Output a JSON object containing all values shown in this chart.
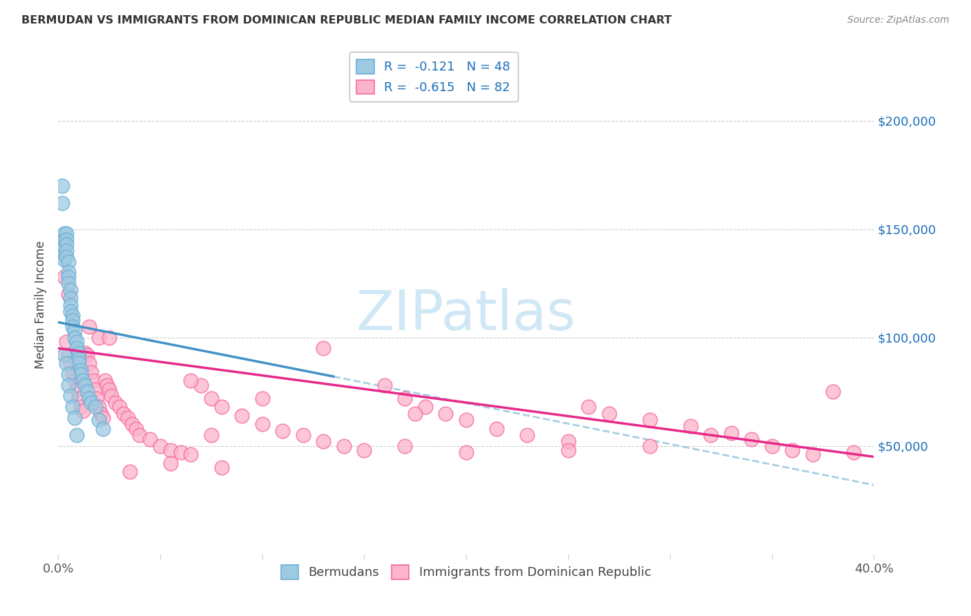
{
  "title": "BERMUDAN VS IMMIGRANTS FROM DOMINICAN REPUBLIC MEDIAN FAMILY INCOME CORRELATION CHART",
  "source": "Source: ZipAtlas.com",
  "ylabel": "Median Family Income",
  "xlim": [
    0.0,
    0.4
  ],
  "ylim": [
    0,
    230000
  ],
  "yticks": [
    0,
    50000,
    100000,
    150000,
    200000
  ],
  "ytick_labels_right": [
    "",
    "$50,000",
    "$100,000",
    "$150,000",
    "$200,000"
  ],
  "xticks": [
    0.0,
    0.05,
    0.1,
    0.15,
    0.2,
    0.25,
    0.3,
    0.35,
    0.4
  ],
  "xtick_labels": [
    "0.0%",
    "",
    "",
    "",
    "",
    "",
    "",
    "",
    "40.0%"
  ],
  "legend_labels": [
    "R =  -0.121   N = 48",
    "R =  -0.615   N = 82"
  ],
  "legend_bottom_labels": [
    "Bermudans",
    "Immigrants from Dominican Republic"
  ],
  "blue_scatter_color": "#9ecae1",
  "blue_edge_color": "#6baed6",
  "pink_scatter_color": "#fbb4c9",
  "pink_edge_color": "#f768a1",
  "blue_line_color": "#4292c6",
  "pink_line_color": "#e7298a",
  "dashed_line_color": "#9ecae1",
  "watermark_text": "ZIPatlas",
  "watermark_color": "#d0e8f5",
  "blue_line_x0": 0.0,
  "blue_line_x1": 0.135,
  "blue_line_y0": 107000,
  "blue_line_y1": 82000,
  "dash_line_x0": 0.135,
  "dash_line_x1": 0.4,
  "dash_line_y0": 82000,
  "dash_line_y1": 32000,
  "pink_line_x0": 0.0,
  "pink_line_x1": 0.4,
  "pink_line_y0": 95000,
  "pink_line_y1": 45000,
  "blue_x": [
    0.002,
    0.002,
    0.003,
    0.003,
    0.003,
    0.003,
    0.003,
    0.004,
    0.004,
    0.004,
    0.004,
    0.004,
    0.005,
    0.005,
    0.005,
    0.005,
    0.006,
    0.006,
    0.006,
    0.006,
    0.007,
    0.007,
    0.007,
    0.008,
    0.008,
    0.009,
    0.009,
    0.01,
    0.01,
    0.01,
    0.011,
    0.011,
    0.012,
    0.013,
    0.014,
    0.015,
    0.016,
    0.018,
    0.02,
    0.022,
    0.003,
    0.004,
    0.005,
    0.005,
    0.006,
    0.007,
    0.008,
    0.009
  ],
  "blue_y": [
    170000,
    162000,
    148000,
    145000,
    142000,
    138000,
    136000,
    148000,
    145000,
    143000,
    140000,
    137000,
    135000,
    130000,
    128000,
    125000,
    122000,
    118000,
    115000,
    112000,
    110000,
    108000,
    105000,
    103000,
    100000,
    98000,
    95000,
    93000,
    90000,
    88000,
    85000,
    83000,
    80000,
    78000,
    75000,
    72000,
    70000,
    68000,
    62000,
    58000,
    92000,
    88000,
    83000,
    78000,
    73000,
    68000,
    63000,
    55000
  ],
  "pink_x": [
    0.003,
    0.004,
    0.005,
    0.005,
    0.006,
    0.007,
    0.008,
    0.009,
    0.01,
    0.011,
    0.012,
    0.013,
    0.014,
    0.015,
    0.016,
    0.017,
    0.018,
    0.019,
    0.02,
    0.021,
    0.022,
    0.023,
    0.024,
    0.025,
    0.026,
    0.028,
    0.03,
    0.032,
    0.034,
    0.036,
    0.038,
    0.04,
    0.045,
    0.05,
    0.055,
    0.06,
    0.065,
    0.07,
    0.075,
    0.08,
    0.09,
    0.1,
    0.11,
    0.12,
    0.13,
    0.14,
    0.15,
    0.16,
    0.17,
    0.18,
    0.19,
    0.2,
    0.215,
    0.23,
    0.25,
    0.26,
    0.27,
    0.29,
    0.31,
    0.33,
    0.34,
    0.35,
    0.36,
    0.37,
    0.38,
    0.39,
    0.02,
    0.025,
    0.015,
    0.13,
    0.075,
    0.1,
    0.065,
    0.2,
    0.25,
    0.175,
    0.055,
    0.08,
    0.035,
    0.17,
    0.29,
    0.32
  ],
  "pink_y": [
    128000,
    98000,
    120000,
    92000,
    88000,
    84000,
    80000,
    76000,
    72000,
    68000,
    66000,
    93000,
    92000,
    88000,
    84000,
    80000,
    76000,
    72000,
    68000,
    65000,
    63000,
    80000,
    78000,
    76000,
    73000,
    70000,
    68000,
    65000,
    63000,
    60000,
    58000,
    55000,
    53000,
    50000,
    48000,
    47000,
    46000,
    78000,
    72000,
    68000,
    64000,
    60000,
    57000,
    55000,
    52000,
    50000,
    48000,
    78000,
    72000,
    68000,
    65000,
    62000,
    58000,
    55000,
    52000,
    68000,
    65000,
    62000,
    59000,
    56000,
    53000,
    50000,
    48000,
    46000,
    75000,
    47000,
    100000,
    100000,
    105000,
    95000,
    55000,
    72000,
    80000,
    47000,
    48000,
    65000,
    42000,
    40000,
    38000,
    50000,
    50000,
    55000
  ]
}
